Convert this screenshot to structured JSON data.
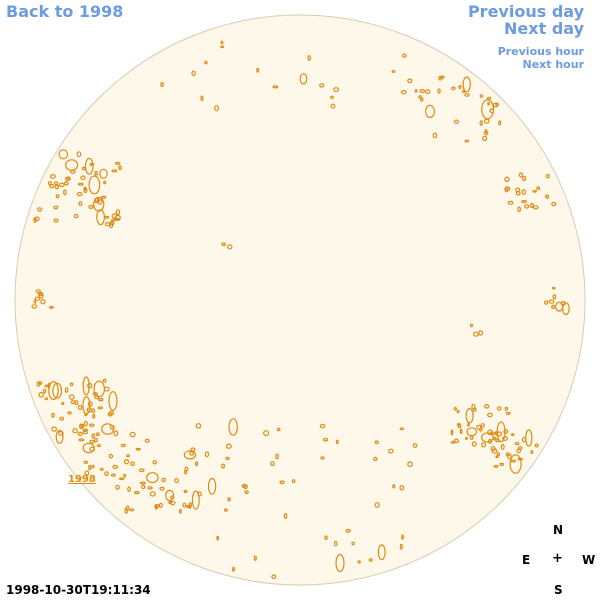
{
  "nav": {
    "back_label": "Back to 1998",
    "prev_day_label": "Previous day",
    "next_day_label": "Next day",
    "prev_hour_label": "Previous hour",
    "next_hour_label": "Next hour"
  },
  "overlay": {
    "year_label": "1998"
  },
  "compass": {
    "north": "N",
    "east": "E",
    "center": "+",
    "west": "W",
    "south": "S"
  },
  "timestamp": "1998-10-30T19:11:34",
  "colors": {
    "link": "#6d9be0",
    "disk_fill": "#fdf8ea",
    "disk_edge": "#d9cbb0",
    "contour": "#e08a10"
  }
}
